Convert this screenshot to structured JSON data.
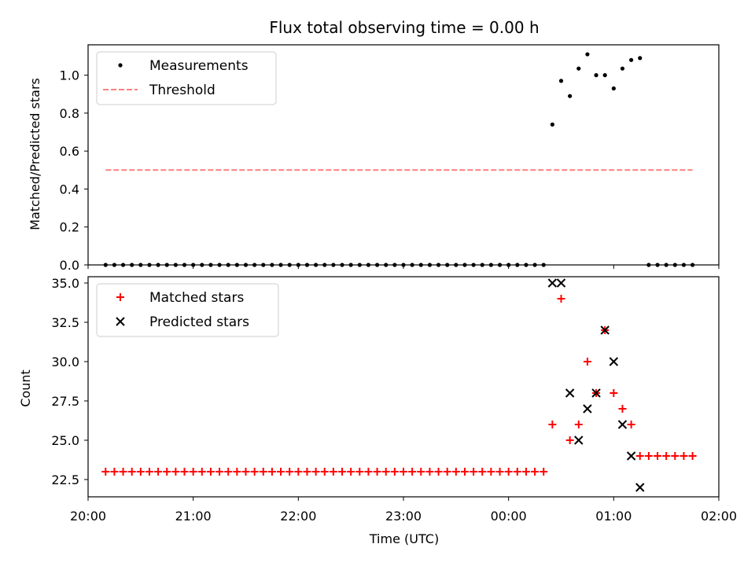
{
  "chart_data": {
    "title": "Flux total observing time = 0.00 h",
    "xlabel": "Time (UTC)",
    "x_unit": "time (UTC)",
    "xlim": [
      "20:00",
      "02:00"
    ],
    "x_ticks": [
      "20:00",
      "21:00",
      "22:00",
      "23:00",
      "00:00",
      "01:00",
      "02:00"
    ],
    "colors": {
      "matched": "#ff0000",
      "predicted": "#000000",
      "threshold": "#ff7f7f",
      "measurement": "#000000"
    },
    "panels": [
      {
        "type": "scatter",
        "ylabel": "Matched/Predicted stars",
        "ylim": [
          0.0,
          1.16
        ],
        "y_ticks": [
          "0.0",
          "0.2",
          "0.4",
          "0.6",
          "0.8",
          "1.0"
        ],
        "legend": "top-left",
        "series": [
          {
            "name": "Measurements",
            "marker": "dot",
            "x": [
              "20:10",
              "20:15",
              "20:20",
              "20:25",
              "20:30",
              "20:35",
              "20:40",
              "20:45",
              "20:50",
              "20:55",
              "21:00",
              "21:05",
              "21:10",
              "21:15",
              "21:20",
              "21:25",
              "21:30",
              "21:35",
              "21:40",
              "21:45",
              "21:50",
              "21:55",
              "22:00",
              "22:05",
              "22:10",
              "22:15",
              "22:20",
              "22:25",
              "22:30",
              "22:35",
              "22:40",
              "22:45",
              "22:50",
              "22:55",
              "23:00",
              "23:05",
              "23:10",
              "23:15",
              "23:20",
              "23:25",
              "23:30",
              "23:35",
              "23:40",
              "23:45",
              "23:50",
              "23:55",
              "00:00",
              "00:05",
              "00:10",
              "00:15",
              "00:20",
              "00:25",
              "00:30",
              "00:35",
              "00:40",
              "00:45",
              "00:50",
              "00:55",
              "01:00",
              "01:05",
              "01:10",
              "01:15",
              "01:20",
              "01:25",
              "01:30",
              "01:35",
              "01:40",
              "01:45"
            ],
            "y": [
              0,
              0,
              0,
              0,
              0,
              0,
              0,
              0,
              0,
              0,
              0,
              0,
              0,
              0,
              0,
              0,
              0,
              0,
              0,
              0,
              0,
              0,
              0,
              0,
              0,
              0,
              0,
              0,
              0,
              0,
              0,
              0,
              0,
              0,
              0,
              0,
              0,
              0,
              0,
              0,
              0,
              0,
              0,
              0,
              0,
              0,
              0,
              0,
              0,
              0,
              0,
              0.74,
              0.97,
              0.89,
              1.035,
              1.11,
              1.0,
              1.0,
              0.93,
              1.035,
              1.08,
              1.09,
              0,
              0,
              0,
              0,
              0,
              0
            ]
          },
          {
            "name": "Threshold",
            "marker": "dashed-line",
            "x": [
              "20:10",
              "01:45"
            ],
            "y": [
              0.5,
              0.5
            ]
          }
        ]
      },
      {
        "type": "scatter",
        "ylabel": "Count",
        "ylim": [
          21.4,
          35.4
        ],
        "y_ticks": [
          "22.5",
          "25.0",
          "27.5",
          "30.0",
          "32.5",
          "35.0"
        ],
        "legend": "top-left",
        "series": [
          {
            "name": "Matched stars",
            "marker": "plus",
            "x": [
              "20:10",
              "20:15",
              "20:20",
              "20:25",
              "20:30",
              "20:35",
              "20:40",
              "20:45",
              "20:50",
              "20:55",
              "21:00",
              "21:05",
              "21:10",
              "21:15",
              "21:20",
              "21:25",
              "21:30",
              "21:35",
              "21:40",
              "21:45",
              "21:50",
              "21:55",
              "22:00",
              "22:05",
              "22:10",
              "22:15",
              "22:20",
              "22:25",
              "22:30",
              "22:35",
              "22:40",
              "22:45",
              "22:50",
              "22:55",
              "23:00",
              "23:05",
              "23:10",
              "23:15",
              "23:20",
              "23:25",
              "23:30",
              "23:35",
              "23:40",
              "23:45",
              "23:50",
              "23:55",
              "00:00",
              "00:05",
              "00:10",
              "00:15",
              "00:20",
              "00:25",
              "00:30",
              "00:35",
              "00:40",
              "00:45",
              "00:50",
              "00:55",
              "01:00",
              "01:05",
              "01:10",
              "01:15",
              "01:20",
              "01:25",
              "01:30",
              "01:35",
              "01:40",
              "01:45"
            ],
            "y": [
              23,
              23,
              23,
              23,
              23,
              23,
              23,
              23,
              23,
              23,
              23,
              23,
              23,
              23,
              23,
              23,
              23,
              23,
              23,
              23,
              23,
              23,
              23,
              23,
              23,
              23,
              23,
              23,
              23,
              23,
              23,
              23,
              23,
              23,
              23,
              23,
              23,
              23,
              23,
              23,
              23,
              23,
              23,
              23,
              23,
              23,
              23,
              23,
              23,
              23,
              23,
              26,
              34,
              25,
              26,
              30,
              28,
              32,
              28,
              27,
              26,
              24,
              24,
              24,
              24,
              24,
              24,
              24
            ]
          },
          {
            "name": "Predicted stars",
            "marker": "x",
            "x": [
              "00:25",
              "00:30",
              "00:35",
              "00:40",
              "00:45",
              "00:50",
              "00:55",
              "01:00",
              "01:05",
              "01:10",
              "01:15"
            ],
            "y": [
              35,
              35,
              28,
              25,
              27,
              28,
              32,
              30,
              26,
              24,
              22
            ]
          }
        ]
      }
    ]
  }
}
